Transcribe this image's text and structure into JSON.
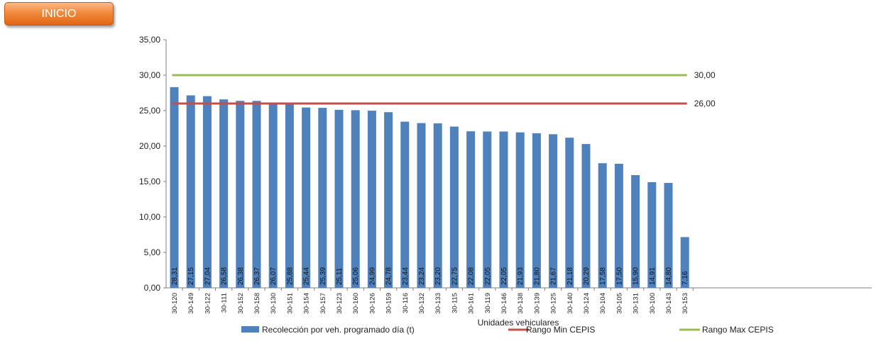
{
  "inicio_button": {
    "label": "INICIO"
  },
  "chart_data": {
    "type": "bar",
    "xlabel": "Unidades vehiculares",
    "ylabel": "",
    "ylim": [
      0,
      35
    ],
    "yticks": [
      "0,00",
      "5,00",
      "10,00",
      "15,00",
      "20,00",
      "25,00",
      "30,00",
      "35,00"
    ],
    "categories": [
      "30-120",
      "30-149",
      "30-122",
      "30-111",
      "30-152",
      "30-158",
      "30-130",
      "30-151",
      "30-154",
      "30-157",
      "30-123",
      "30-160",
      "30-126",
      "30-159",
      "30-116",
      "30-132",
      "30-133",
      "30-115",
      "30-161",
      "30-119",
      "30-146",
      "30-138",
      "30-139",
      "30-125",
      "30-140",
      "30-124",
      "30-104",
      "30-105",
      "30-131",
      "30-100",
      "30-143",
      "30-153"
    ],
    "series": [
      {
        "name": "Recolección por veh. programado día (t)",
        "type": "bar",
        "color": "#4f81bd",
        "values": [
          28.31,
          27.15,
          27.04,
          26.58,
          26.38,
          26.37,
          26.07,
          25.88,
          25.44,
          25.39,
          25.11,
          25.06,
          24.99,
          24.78,
          23.44,
          23.24,
          23.2,
          22.75,
          22.08,
          22.05,
          22.05,
          21.93,
          21.8,
          21.67,
          21.18,
          20.29,
          17.58,
          17.5,
          15.9,
          14.91,
          14.8,
          7.16
        ],
        "labels": [
          "28,31",
          "27,15",
          "27,04",
          "26,58",
          "26,38",
          "26,37",
          "26,07",
          "25,88",
          "25,44",
          "25,39",
          "25,11",
          "25,06",
          "24,99",
          "24,78",
          "23,44",
          "23,24",
          "23,20",
          "22,75",
          "22,08",
          "22,05",
          "22,05",
          "21,93",
          "21,80",
          "21,67",
          "21,18",
          "20,29",
          "17,58",
          "17,50",
          "15,90",
          "14,91",
          "14,80",
          "7,16"
        ]
      },
      {
        "name": "Rango Min CEPIS",
        "type": "line",
        "color": "#c0504d",
        "value": 26.0,
        "label": "26,00"
      },
      {
        "name": "Rango Max CEPIS",
        "type": "line",
        "color": "#9bbb59",
        "value": 30.0,
        "label": "30,00"
      }
    ],
    "grid": false,
    "legend": "bottom"
  }
}
